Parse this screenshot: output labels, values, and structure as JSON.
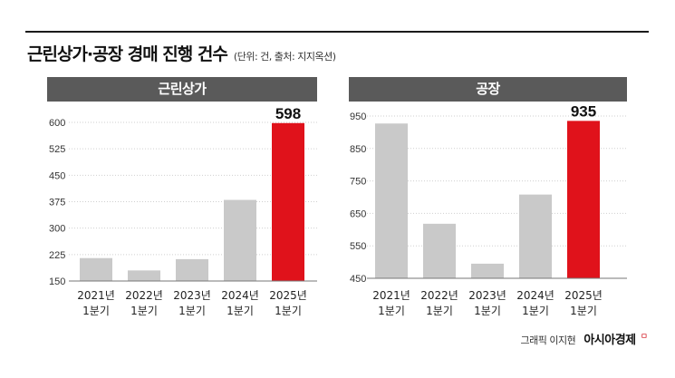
{
  "header": {
    "title": "근린상가·공장 경매 진행 건수",
    "unit_note": "(단위: 건, 출처: 지지옥션)"
  },
  "credit": {
    "text": "그래픽 이지현",
    "brand": "아시아경제",
    "brand_mark": "ㅁ"
  },
  "colors": {
    "bar_past": "#c9c9c9",
    "bar_highlight": "#e0121b",
    "header_bg": "#5a5a5a"
  },
  "chart_data": [
    {
      "type": "bar",
      "title": "근린상가",
      "categories": [
        "2021년\n1분기",
        "2022년\n1분기",
        "2023년\n1분기",
        "2024년\n1분기",
        "2025년\n1분기"
      ],
      "values": [
        215,
        180,
        212,
        380,
        598
      ],
      "highlight_index": 4,
      "highlight_label": "598",
      "yticks": [
        150,
        225,
        300,
        375,
        450,
        525,
        600
      ],
      "ylim": [
        150,
        600
      ],
      "grid": true
    },
    {
      "type": "bar",
      "title": "공장",
      "categories": [
        "2021년\n1분기",
        "2022년\n1분기",
        "2023년\n1분기",
        "2024년\n1분기",
        "2025년\n1분기"
      ],
      "values": [
        927,
        618,
        495,
        708,
        935
      ],
      "highlight_index": 4,
      "highlight_label": "935",
      "yticks": [
        450,
        550,
        650,
        750,
        850,
        950
      ],
      "ylim": [
        450,
        950
      ],
      "grid": true
    }
  ]
}
